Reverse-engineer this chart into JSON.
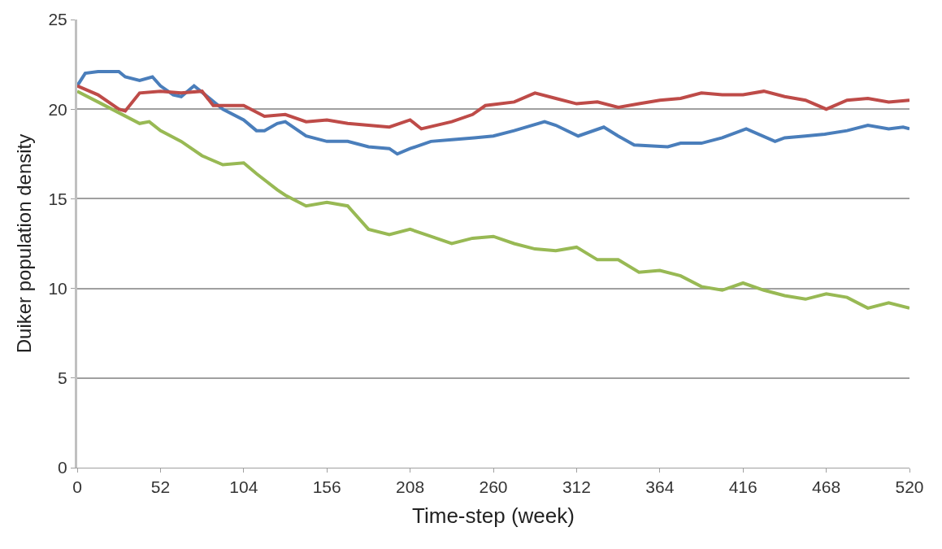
{
  "chart_data": {
    "type": "line",
    "xlabel": "Time-step (week)",
    "ylabel": "Duiker population density",
    "xlim": [
      0,
      520
    ],
    "xticks": [
      0,
      52,
      104,
      156,
      208,
      260,
      312,
      364,
      416,
      468,
      520
    ],
    "ylim": [
      0,
      25
    ],
    "yticks": [
      0,
      5,
      10,
      15,
      20,
      25
    ],
    "grid": "y",
    "marker": "none",
    "line_style": "solid",
    "series": [
      {
        "color": "#4a7ebb",
        "x": [
          0,
          5,
          13,
          26,
          30,
          39,
          47,
          52,
          60,
          65,
          73,
          80,
          91,
          104,
          112,
          117,
          125,
          130,
          143,
          156,
          169,
          182,
          195,
          200,
          208,
          221,
          234,
          248,
          260,
          273,
          292,
          299,
          313,
          329,
          338,
          348,
          369,
          377,
          390,
          403,
          418,
          436,
          442,
          455,
          467,
          481,
          494,
          507,
          516,
          520
        ],
        "values": [
          21.3,
          22.0,
          22.1,
          22.1,
          21.8,
          21.6,
          21.8,
          21.3,
          20.8,
          20.7,
          21.3,
          20.8,
          20.0,
          19.4,
          18.8,
          18.8,
          19.2,
          19.3,
          18.5,
          18.2,
          18.2,
          17.9,
          17.8,
          17.5,
          17.8,
          18.2,
          18.3,
          18.4,
          18.5,
          18.8,
          19.3,
          19.1,
          18.5,
          19.0,
          18.5,
          18.0,
          17.9,
          18.1,
          18.1,
          18.4,
          18.9,
          18.2,
          18.4,
          18.5,
          18.6,
          18.8,
          19.1,
          18.9,
          19.0,
          18.9
        ]
      },
      {
        "color": "#be4b48",
        "x": [
          0,
          13,
          26,
          30,
          39,
          52,
          65,
          78,
          85,
          104,
          117,
          130,
          143,
          156,
          169,
          182,
          195,
          208,
          215,
          234,
          247,
          255,
          273,
          286,
          299,
          312,
          325,
          338,
          351,
          364,
          377,
          390,
          403,
          416,
          429,
          442,
          455,
          468,
          481,
          494,
          507,
          520
        ],
        "values": [
          21.3,
          20.8,
          20.0,
          19.9,
          20.9,
          21.0,
          20.9,
          21.0,
          20.2,
          20.2,
          19.6,
          19.7,
          19.3,
          19.4,
          19.2,
          19.1,
          19.0,
          19.4,
          18.9,
          19.3,
          19.7,
          20.2,
          20.4,
          20.9,
          20.6,
          20.3,
          20.4,
          20.1,
          20.3,
          20.5,
          20.6,
          20.9,
          20.8,
          20.8,
          21.0,
          20.7,
          20.5,
          20.0,
          20.5,
          20.6,
          20.4,
          20.5
        ]
      },
      {
        "color": "#98b954",
        "x": [
          0,
          13,
          26,
          39,
          45,
          52,
          65,
          78,
          91,
          104,
          112,
          125,
          130,
          143,
          156,
          169,
          182,
          195,
          208,
          221,
          234,
          247,
          260,
          273,
          286,
          299,
          312,
          325,
          338,
          351,
          364,
          377,
          390,
          403,
          416,
          429,
          442,
          455,
          468,
          481,
          494,
          507,
          520
        ],
        "values": [
          21.0,
          20.4,
          19.8,
          19.2,
          19.3,
          18.8,
          18.2,
          17.4,
          16.9,
          17.0,
          16.4,
          15.5,
          15.2,
          14.6,
          14.8,
          14.6,
          13.3,
          13.0,
          13.3,
          12.9,
          12.5,
          12.8,
          12.9,
          12.5,
          12.2,
          12.1,
          12.3,
          11.6,
          11.6,
          10.9,
          11.0,
          10.7,
          10.1,
          9.9,
          10.3,
          9.9,
          9.6,
          9.4,
          9.7,
          9.5,
          8.9,
          9.2,
          8.9
        ]
      }
    ]
  }
}
